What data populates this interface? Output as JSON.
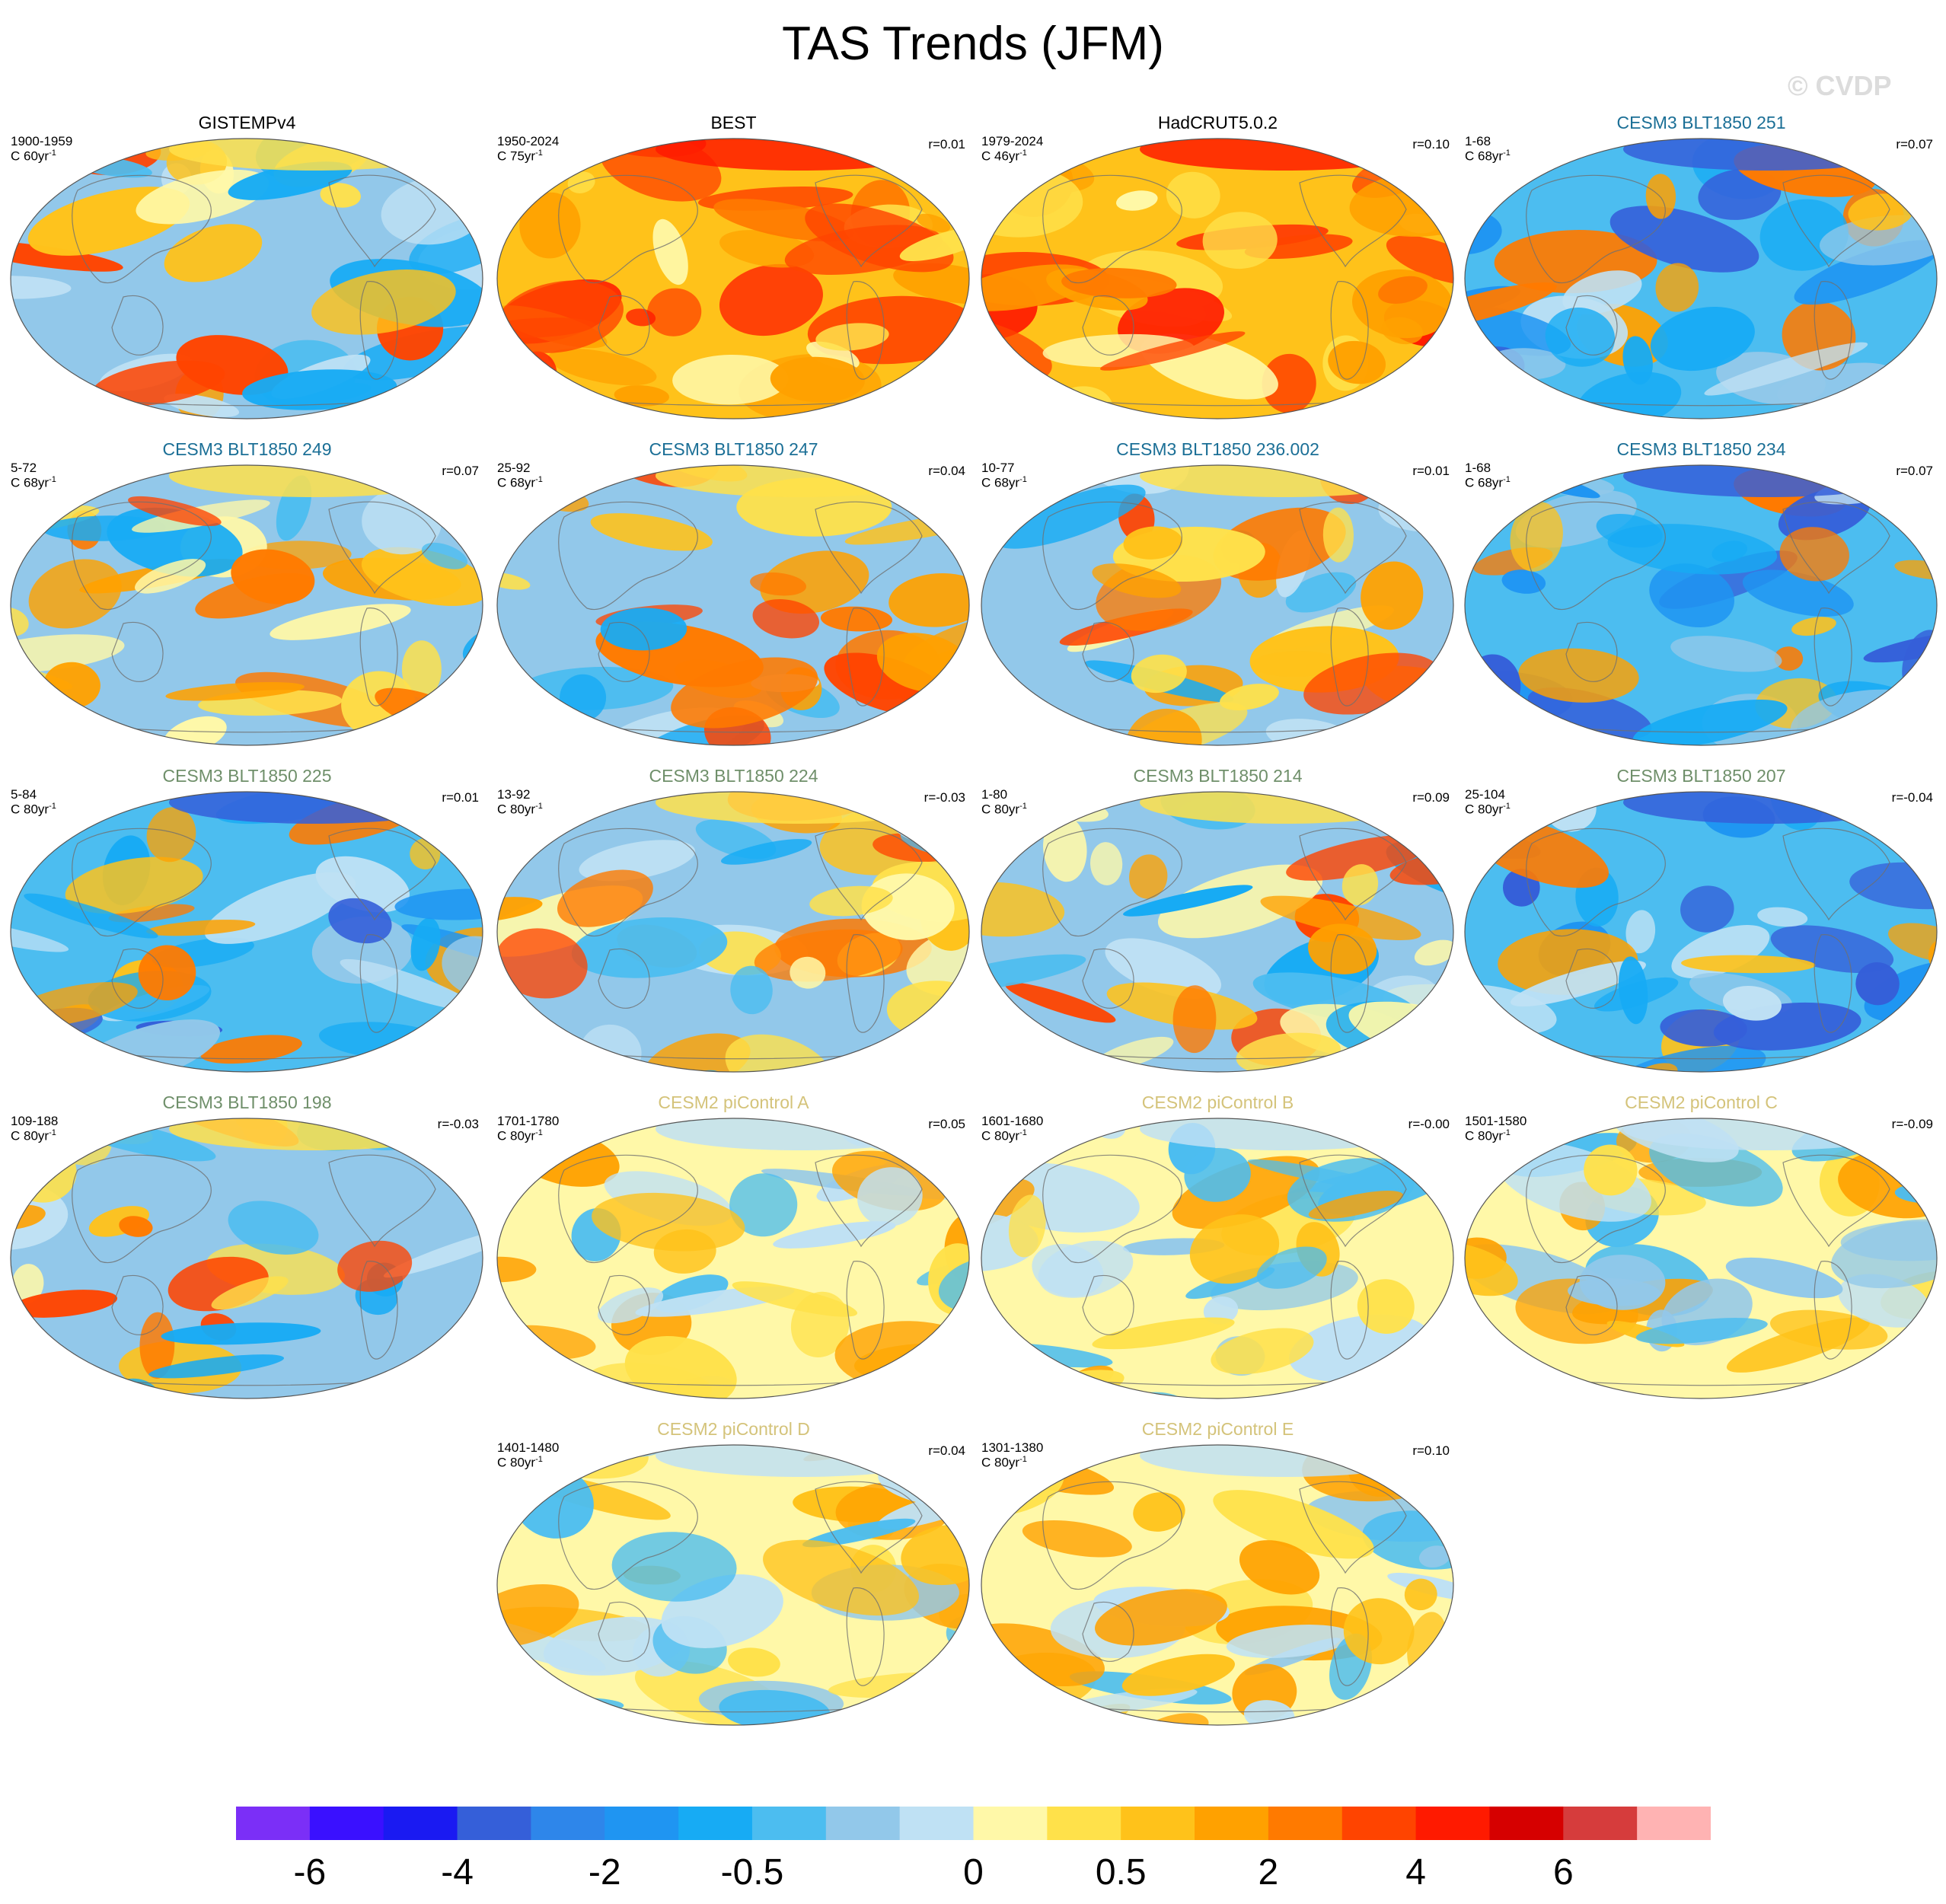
{
  "title": "TAS Trends (JFM)",
  "watermark": "© CVDP",
  "colors": {
    "obs_title": "#000000",
    "cesm3_a": "#1b6f96",
    "cesm3_b": "#6f8f6a",
    "cesm2": "#d4c37a"
  },
  "chart_data": {
    "type": "heatmap",
    "projection": "Robinson (Pacific-centered) global maps",
    "variable": "TAS",
    "season": "JFM",
    "colorbar": {
      "colors": [
        "#7b2ff7",
        "#3a10ff",
        "#1a1af2",
        "#355fd9",
        "#2e86ea",
        "#1f95f2",
        "#17abf4",
        "#4cbdf0",
        "#92c8ea",
        "#bfe1f4",
        "#fff8a8",
        "#ffe14a",
        "#ffc21a",
        "#ffa100",
        "#ff7a00",
        "#ff4400",
        "#ff1a00",
        "#d60000",
        "#d63c3c",
        "#ffb3b3"
      ],
      "tick_labels": [
        "-6",
        "-4",
        "-2",
        "-0.5",
        "0",
        "0.5",
        "2",
        "4",
        "6"
      ],
      "tick_boundaries": [
        1,
        3,
        5,
        7,
        10,
        12,
        14,
        16,
        18
      ]
    },
    "panels": [
      {
        "title": "GISTEMPv4",
        "title_color": "obs_title",
        "period": "1900-1959",
        "units": "C 60yr",
        "corr": "",
        "bias": "mixed",
        "row": 0,
        "col": 0
      },
      {
        "title": "BEST",
        "title_color": "obs_title",
        "period": "1950-2024",
        "units": "C 75yr",
        "corr": "r=0.01",
        "bias": "warm",
        "row": 0,
        "col": 1
      },
      {
        "title": "HadCRUT5.0.2",
        "title_color": "obs_title",
        "period": "1979-2024",
        "units": "C 46yr",
        "corr": "r=0.10",
        "bias": "warm",
        "row": 0,
        "col": 2
      },
      {
        "title": "CESM3 BLT1850 251",
        "title_color": "cesm3_a",
        "period": "1-68",
        "units": "C 68yr",
        "corr": "r=0.07",
        "bias": "cold",
        "row": 0,
        "col": 3
      },
      {
        "title": "CESM3 BLT1850 249",
        "title_color": "cesm3_a",
        "period": "5-72",
        "units": "C 68yr",
        "corr": "r=0.07",
        "bias": "mixed",
        "row": 1,
        "col": 0
      },
      {
        "title": "CESM3 BLT1850 247",
        "title_color": "cesm3_a",
        "period": "25-92",
        "units": "C 68yr",
        "corr": "r=0.04",
        "bias": "mixed",
        "row": 1,
        "col": 1
      },
      {
        "title": "CESM3 BLT1850 236.002",
        "title_color": "cesm3_a",
        "period": "10-77",
        "units": "C 68yr",
        "corr": "r=0.01",
        "bias": "mixed",
        "row": 1,
        "col": 2
      },
      {
        "title": "CESM3 BLT1850 234",
        "title_color": "cesm3_a",
        "period": "1-68",
        "units": "C 68yr",
        "corr": "r=0.07",
        "bias": "cold",
        "row": 1,
        "col": 3
      },
      {
        "title": "CESM3 BLT1850 225",
        "title_color": "cesm3_b",
        "period": "5-84",
        "units": "C 80yr",
        "corr": "r=0.01",
        "bias": "cold",
        "row": 2,
        "col": 0
      },
      {
        "title": "CESM3 BLT1850 224",
        "title_color": "cesm3_b",
        "period": "13-92",
        "units": "C 80yr",
        "corr": "r=-0.03",
        "bias": "mixed",
        "row": 2,
        "col": 1
      },
      {
        "title": "CESM3 BLT1850 214",
        "title_color": "cesm3_b",
        "period": "1-80",
        "units": "C 80yr",
        "corr": "r=0.09",
        "bias": "mixed",
        "row": 2,
        "col": 2
      },
      {
        "title": "CESM3 BLT1850 207",
        "title_color": "cesm3_b",
        "period": "25-104",
        "units": "C 80yr",
        "corr": "r=-0.04",
        "bias": "cold",
        "row": 2,
        "col": 3
      },
      {
        "title": "CESM3 BLT1850 198",
        "title_color": "cesm3_b",
        "period": "109-188",
        "units": "C 80yr",
        "corr": "r=-0.03",
        "bias": "mixed",
        "row": 3,
        "col": 0
      },
      {
        "title": "CESM2 piControl A",
        "title_color": "cesm2",
        "period": "1701-1780",
        "units": "C 80yr",
        "corr": "r=0.05",
        "bias": "neutral",
        "row": 3,
        "col": 1
      },
      {
        "title": "CESM2 piControl B",
        "title_color": "cesm2",
        "period": "1601-1680",
        "units": "C 80yr",
        "corr": "r=-0.00",
        "bias": "neutral",
        "row": 3,
        "col": 2
      },
      {
        "title": "CESM2 piControl C",
        "title_color": "cesm2",
        "period": "1501-1580",
        "units": "C 80yr",
        "corr": "r=-0.09",
        "bias": "neutral",
        "row": 3,
        "col": 3
      },
      {
        "title": "CESM2 piControl D",
        "title_color": "cesm2",
        "period": "1401-1480",
        "units": "C 80yr",
        "corr": "r=0.04",
        "bias": "neutral",
        "row": 4,
        "col": 1
      },
      {
        "title": "CESM2 piControl E",
        "title_color": "cesm2",
        "period": "1301-1380",
        "units": "C 80yr",
        "corr": "r=0.10",
        "bias": "neutral",
        "row": 4,
        "col": 2
      }
    ]
  }
}
